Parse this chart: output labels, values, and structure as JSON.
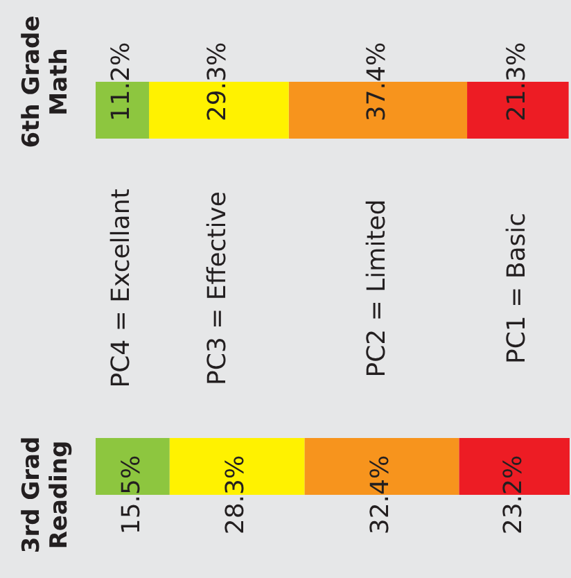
{
  "chart_data": {
    "type": "bar",
    "stacked": true,
    "orientation": "horizontal",
    "categories": [
      "6th Grade Math",
      "3rd Grad Reading"
    ],
    "series": [
      {
        "name": "PC4 = Excellant",
        "color": "#8dc63f",
        "values": [
          11.2,
          15.5
        ],
        "value_labels": [
          "11.2%",
          "15.5%"
        ]
      },
      {
        "name": "PC3 = Effective",
        "color": "#fff200",
        "values": [
          29.3,
          28.3
        ],
        "value_labels": [
          "29.3%",
          "28.3%"
        ]
      },
      {
        "name": "PC2 = Limited",
        "color": "#f7941d",
        "values": [
          37.4,
          32.4
        ],
        "value_labels": [
          "37.4%",
          "32.4%"
        ]
      },
      {
        "name": "PC1 = Basic",
        "color": "#ed1c24",
        "values": [
          21.3,
          23.2
        ],
        "value_labels": [
          "21.3%",
          "23.2%"
        ]
      }
    ],
    "grid": false,
    "tick_labels": false
  }
}
